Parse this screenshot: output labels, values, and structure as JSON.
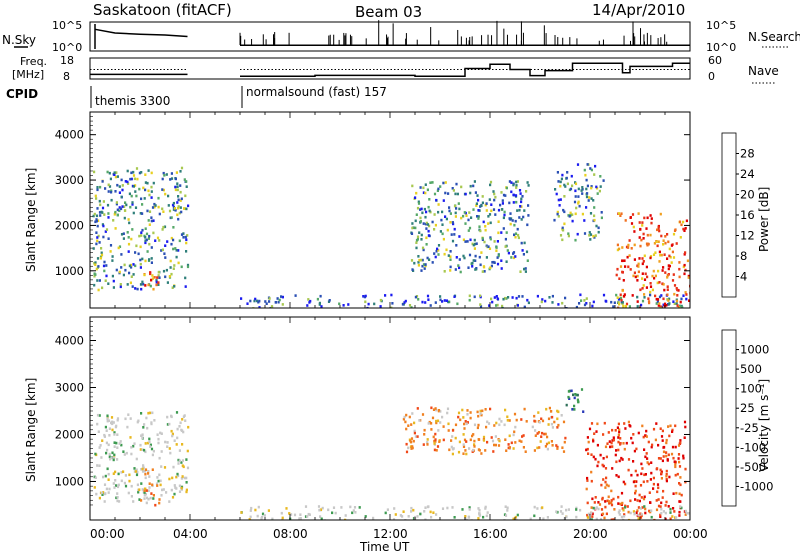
{
  "header": {
    "station": "Saskatoon (fitACF)",
    "beam": "Beam 03",
    "date": "14/Apr/2010"
  },
  "top_panels": {
    "nsky_label": "N.Sky",
    "nsky_ticks": [
      "10^5",
      "10^0"
    ],
    "nsearch_label": "N.Search",
    "nsearch_ticks": [
      "10^5",
      "10^0"
    ],
    "freq_label_line1": "Freq.",
    "freq_label_line2": "[MHz]",
    "freq_ticks": [
      "18",
      "8"
    ],
    "nave_label": "Nave",
    "nave_ticks": [
      "60",
      "0"
    ],
    "cpid_label": "CPID",
    "cpid_segments": [
      {
        "name": "themis 3300",
        "start": 0,
        "end": 3.9
      },
      {
        "name": "normalsound (fast) 157",
        "start": 6.0,
        "end": 24
      }
    ]
  },
  "axes": {
    "x_ticks": [
      "00:00",
      "04:00",
      "08:00",
      "12:00",
      "16:00",
      "20:00",
      "00:00"
    ],
    "x_label": "Time UT",
    "y_label": "Slant Range [km]",
    "y_ticks": [
      "1000",
      "2000",
      "3000",
      "4000"
    ]
  },
  "colorbars": {
    "power_label": "Power [dB]",
    "power_ticks": [
      "4",
      "8",
      "12",
      "16",
      "20",
      "24",
      "28"
    ],
    "power_colors": [
      "#1b1bf0",
      "#2a4fb4",
      "#2f7f7a",
      "#55a868",
      "#a8c850",
      "#e8d020",
      "#f0a020",
      "#f07020",
      "#e83018",
      "#e00000"
    ],
    "velocity_label": "Velocity [m s⁻¹]",
    "velocity_ticks": [
      "1000",
      "500",
      "100",
      "25",
      "-25",
      "-100",
      "-500",
      "-1000"
    ],
    "velocity_colors": [
      "#2838b8",
      "#2f6f5a",
      "#3c9a50",
      "#c8c8c8",
      "#e8b820",
      "#f08020",
      "#f04818",
      "#e00000"
    ]
  },
  "chart_data": {
    "type": "heatmap",
    "time_range_hours": [
      0,
      24
    ],
    "range_km": [
      180,
      4500
    ],
    "nsky_trace": [
      [
        0.2,
        0.75
      ],
      [
        1.0,
        0.62
      ],
      [
        2.0,
        0.58
      ],
      [
        3.0,
        0.55
      ],
      [
        3.9,
        0.5
      ],
      [
        6.0,
        0.2
      ],
      [
        24,
        0.2
      ]
    ],
    "freq_trace": [
      [
        0,
        10.2
      ],
      [
        3.9,
        10.2
      ],
      [
        6.0,
        9.3
      ],
      [
        12,
        9.3
      ],
      [
        18,
        9.6
      ],
      [
        24,
        9.6
      ]
    ],
    "power_regions": [
      {
        "t": [
          0.1,
          3.9
        ],
        "r": [
          600,
          3300
        ],
        "level": "mixed"
      },
      {
        "t": [
          2.0,
          2.8
        ],
        "r": [
          600,
          1000
        ],
        "level": "high"
      },
      {
        "t": [
          6.0,
          24
        ],
        "r": [
          180,
          500
        ],
        "level": "low-mid"
      },
      {
        "t": [
          12.8,
          17.5
        ],
        "r": [
          1000,
          3000
        ],
        "level": "mixed"
      },
      {
        "t": [
          18.5,
          20.5
        ],
        "r": [
          1700,
          3400
        ],
        "level": "mixed"
      },
      {
        "t": [
          21.0,
          24
        ],
        "r": [
          200,
          2300
        ],
        "level": "high"
      }
    ],
    "velocity_regions": [
      {
        "t": [
          0.1,
          3.9
        ],
        "r": [
          600,
          2500
        ],
        "level": "near-zero"
      },
      {
        "t": [
          2.0,
          2.8
        ],
        "r": [
          500,
          1300
        ],
        "level": "negative"
      },
      {
        "t": [
          12.5,
          19
        ],
        "r": [
          1600,
          2600
        ],
        "level": "negative"
      },
      {
        "t": [
          19.0,
          19.8
        ],
        "r": [
          2500,
          3000
        ],
        "level": "positive"
      },
      {
        "t": [
          19.8,
          23.8
        ],
        "r": [
          200,
          2300
        ],
        "level": "strong-negative"
      }
    ]
  }
}
